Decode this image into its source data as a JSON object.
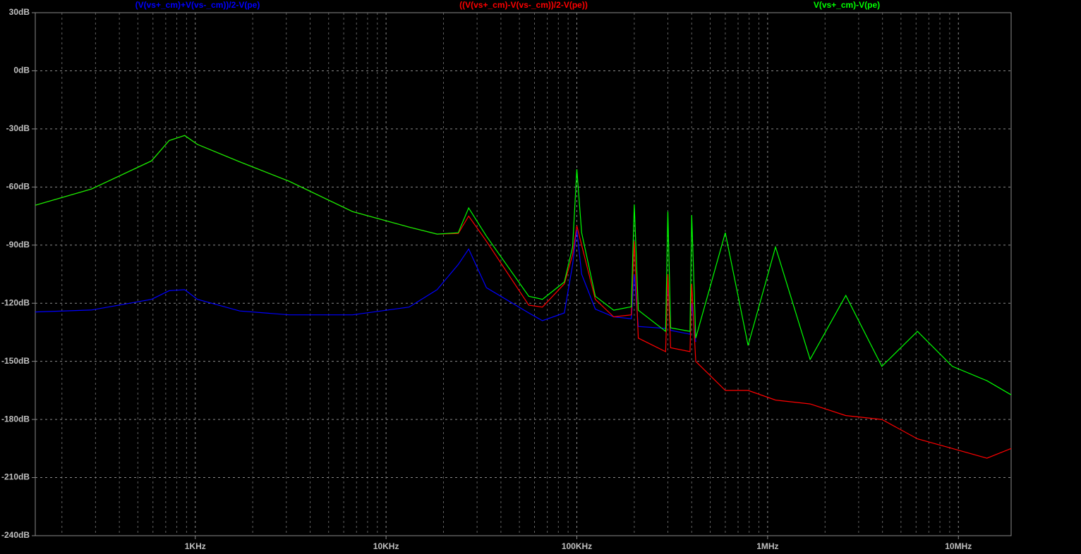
{
  "chart_data": {
    "type": "line",
    "log_x": true,
    "grid": true,
    "background": "#000000",
    "grid_color": "#8a8a8a",
    "axis_label_color": "#c0c0c0",
    "x": [
      145,
      286,
      590,
      730,
      880,
      1026,
      1710,
      3100,
      6670,
      13200,
      18500,
      23900,
      27100,
      33600,
      56000,
      66000,
      86000,
      95000,
      100000,
      106000,
      125000,
      156000,
      193000,
      200000,
      210000,
      292000,
      300000,
      310000,
      392000,
      400000,
      420000,
      600000,
      790000,
      1100000,
      1670000,
      2570000,
      3970000,
      6100000,
      9300000,
      14100000,
      18900000
    ],
    "series": [
      {
        "name": "(V(vs+_cm)+V(vs-_cm))/2-V(pe)",
        "color": "#0000ff",
        "values": [
          -124.5,
          -123.5,
          -118,
          -113.5,
          -113,
          -118,
          -124,
          -126,
          -126,
          -122,
          -113,
          -100,
          -92,
          -112,
          -125,
          -129,
          -125,
          -100,
          -82,
          -105,
          -123,
          -127,
          -128,
          -105,
          -132,
          -133,
          -110,
          -134,
          -136,
          -120,
          -140,
          null,
          null,
          null,
          null,
          null,
          null,
          null,
          null,
          null,
          null
        ]
      },
      {
        "name": "((V(vs+_cm)-V(vs-_cm))/2-V(pe))",
        "color": "#ff0000",
        "values": [
          -69.4,
          -61,
          -46.5,
          -36,
          -33.4,
          -38,
          -47,
          -57,
          -72.7,
          -80.7,
          -84.3,
          -84,
          -75,
          -88,
          -121,
          -122,
          -110,
          -95,
          -80,
          -90,
          -118,
          -127,
          -126,
          -88,
          -138,
          -145,
          -105,
          -143,
          -145,
          -110,
          -150,
          -165,
          -165,
          -170,
          -172,
          -178,
          -180,
          -190,
          -195,
          -200,
          -195
        ]
      },
      {
        "name": "V(vs+_cm)-V(pe)",
        "color": "#00ff00",
        "values": [
          -69.4,
          -61,
          -46.5,
          -36,
          -33.4,
          -38,
          -47,
          -57,
          -72.7,
          -80.7,
          -84.3,
          -83.6,
          -70.8,
          -85.4,
          -116.4,
          -118,
          -109,
          -91,
          -50.8,
          -83.6,
          -116.4,
          -123.6,
          -121.8,
          -69,
          -123.6,
          -134.5,
          -72.7,
          -132.7,
          -134.5,
          -74.5,
          -138,
          -83.6,
          -141.8,
          -91,
          -149,
          -116,
          -152.6,
          -134.5,
          -152.6,
          -160,
          -167.3
        ]
      }
    ],
    "xlim": [
      145,
      18900000
    ],
    "xticks": [
      {
        "value": 1000,
        "label": "1KHz"
      },
      {
        "value": 10000,
        "label": "10KHz"
      },
      {
        "value": 100000,
        "label": "100KHz"
      },
      {
        "value": 1000000,
        "label": "1MHz"
      },
      {
        "value": 10000000,
        "label": "10MHz"
      }
    ],
    "xminorticks": [
      200,
      300,
      400,
      500,
      600,
      700,
      800,
      900,
      2000,
      3000,
      4000,
      5000,
      6000,
      7000,
      8000,
      9000,
      20000,
      30000,
      40000,
      50000,
      60000,
      70000,
      80000,
      90000,
      200000,
      300000,
      400000,
      500000,
      600000,
      700000,
      800000,
      900000,
      2000000,
      3000000,
      4000000,
      5000000,
      6000000,
      7000000,
      8000000,
      9000000
    ],
    "ylim": [
      -240,
      30
    ],
    "yticks": [
      {
        "value": 30,
        "label": "30dB"
      },
      {
        "value": 0,
        "label": "0dB"
      },
      {
        "value": -30,
        "label": "-30dB"
      },
      {
        "value": -60,
        "label": "-60dB"
      },
      {
        "value": -90,
        "label": "-90dB"
      },
      {
        "value": -120,
        "label": "-120dB"
      },
      {
        "value": -150,
        "label": "-150dB"
      },
      {
        "value": -180,
        "label": "-180dB"
      },
      {
        "value": -210,
        "label": "-210dB"
      },
      {
        "value": -240,
        "label": "-240dB"
      }
    ]
  }
}
